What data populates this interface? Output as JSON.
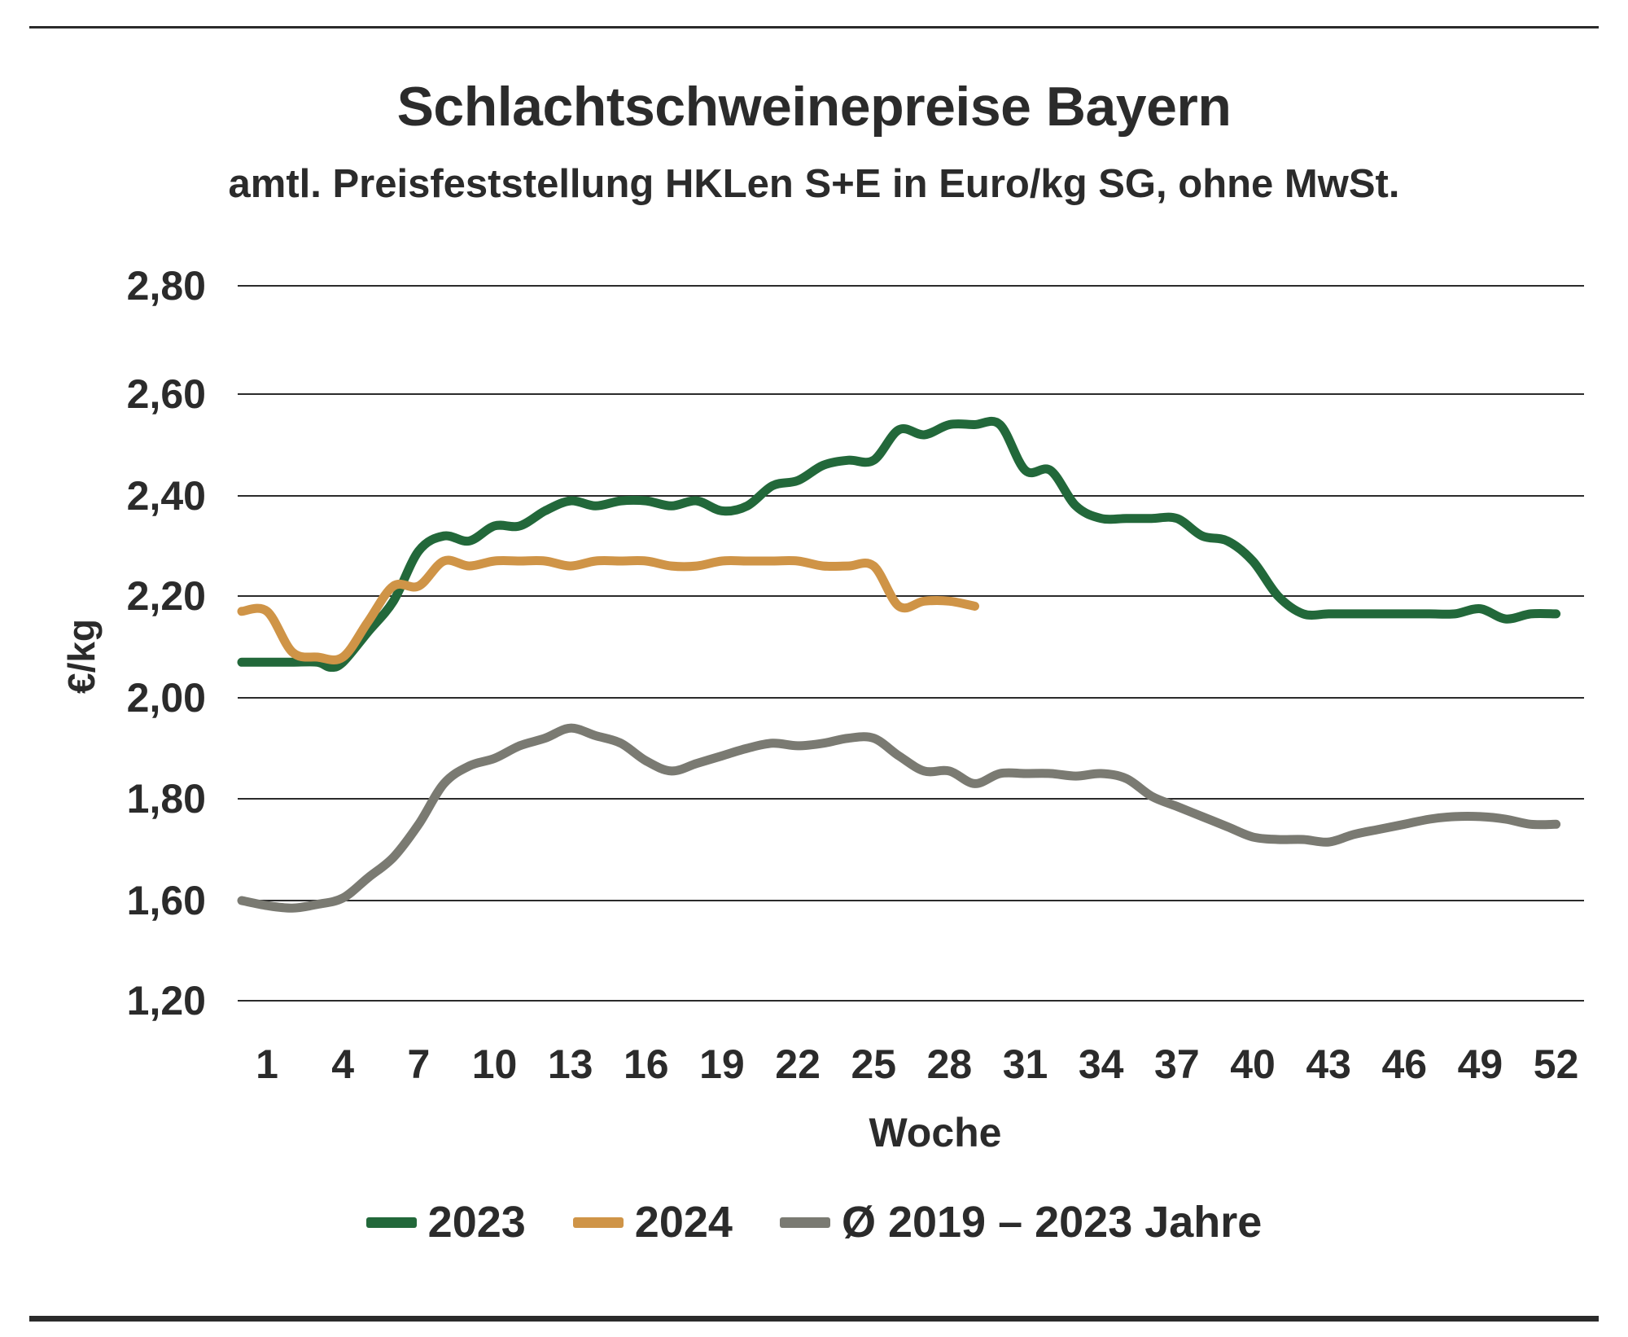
{
  "chart_data": {
    "type": "line",
    "title": "Schlachtschweinepreise Bayern",
    "subtitle": "amtl. Preisfeststellung HKLen S+E in Euro/kg SG, ohne MwSt.",
    "xlabel": "Woche",
    "ylabel": "€/kg",
    "y_ticks": [
      "1,20",
      "1,60",
      "1,80",
      "2,00",
      "2,20",
      "2,40",
      "2,60",
      "2,80"
    ],
    "x_ticks": [
      "1",
      "4",
      "7",
      "10",
      "13",
      "16",
      "19",
      "22",
      "25",
      "28",
      "31",
      "34",
      "37",
      "40",
      "43",
      "46",
      "49",
      "52"
    ],
    "x_tick_values": [
      1,
      4,
      7,
      10,
      13,
      16,
      19,
      22,
      25,
      28,
      31,
      34,
      37,
      40,
      43,
      46,
      49,
      52
    ],
    "grid": true,
    "legend_position": "bottom",
    "series": [
      {
        "name": "2023",
        "color": "#22683a",
        "x": [
          0,
          1,
          2,
          3,
          3.5,
          4,
          5,
          6,
          7,
          8,
          9,
          10,
          11,
          12,
          13,
          14,
          15,
          16,
          17,
          18,
          19,
          20,
          21,
          22,
          23,
          24,
          25,
          26,
          27,
          28,
          29,
          30,
          31,
          32,
          33,
          34,
          35,
          36,
          37,
          38,
          39,
          40,
          41,
          42,
          43,
          44,
          45,
          46,
          47,
          48,
          49,
          50,
          51,
          52
        ],
        "values": [
          2.07,
          2.07,
          2.07,
          2.07,
          2.06,
          2.07,
          2.13,
          2.19,
          2.29,
          2.32,
          2.31,
          2.34,
          2.34,
          2.37,
          2.39,
          2.38,
          2.39,
          2.39,
          2.38,
          2.39,
          2.37,
          2.38,
          2.42,
          2.43,
          2.46,
          2.47,
          2.47,
          2.53,
          2.52,
          2.54,
          2.54,
          2.54,
          2.45,
          2.45,
          2.38,
          2.355,
          2.355,
          2.355,
          2.355,
          2.32,
          2.31,
          2.27,
          2.2,
          2.165,
          2.165,
          2.165,
          2.165,
          2.165,
          2.165,
          2.165,
          2.175,
          2.155,
          2.165,
          2.165
        ]
      },
      {
        "name": "2024",
        "color": "#cf9447",
        "x": [
          0,
          1,
          2,
          3,
          4,
          5,
          6,
          7,
          8,
          9,
          10,
          11,
          12,
          13,
          14,
          15,
          16,
          17,
          18,
          19,
          20,
          21,
          22,
          23,
          24,
          25,
          26,
          27,
          28,
          29
        ],
        "values": [
          2.17,
          2.17,
          2.09,
          2.08,
          2.08,
          2.15,
          2.22,
          2.22,
          2.27,
          2.26,
          2.27,
          2.27,
          2.27,
          2.26,
          2.27,
          2.27,
          2.27,
          2.26,
          2.26,
          2.27,
          2.27,
          2.27,
          2.27,
          2.26,
          2.26,
          2.26,
          2.18,
          2.19,
          2.19,
          2.18
        ]
      },
      {
        "name": "Ø 2019 – 2023 Jahre",
        "color": "#7a7a72",
        "x": [
          0,
          1,
          2,
          3,
          4,
          5,
          6,
          7,
          8,
          9,
          10,
          11,
          12,
          13,
          14,
          15,
          16,
          17,
          18,
          19,
          20,
          21,
          22,
          23,
          24,
          25,
          26,
          27,
          28,
          29,
          30,
          31,
          32,
          33,
          34,
          35,
          36,
          37,
          38,
          39,
          40,
          41,
          42,
          43,
          44,
          45,
          46,
          47,
          48,
          49,
          50,
          51,
          52
        ],
        "values": [
          1.6,
          1.58,
          1.57,
          1.585,
          1.605,
          1.645,
          1.685,
          1.75,
          1.83,
          1.865,
          1.88,
          1.905,
          1.92,
          1.94,
          1.925,
          1.91,
          1.875,
          1.855,
          1.87,
          1.885,
          1.9,
          1.91,
          1.905,
          1.91,
          1.92,
          1.92,
          1.885,
          1.855,
          1.855,
          1.83,
          1.85,
          1.85,
          1.85,
          1.845,
          1.85,
          1.84,
          1.805,
          1.785,
          1.765,
          1.745,
          1.725,
          1.72,
          1.72,
          1.715,
          1.73,
          1.74,
          1.75,
          1.76,
          1.765,
          1.765,
          1.76,
          1.75,
          1.75
        ]
      }
    ]
  }
}
